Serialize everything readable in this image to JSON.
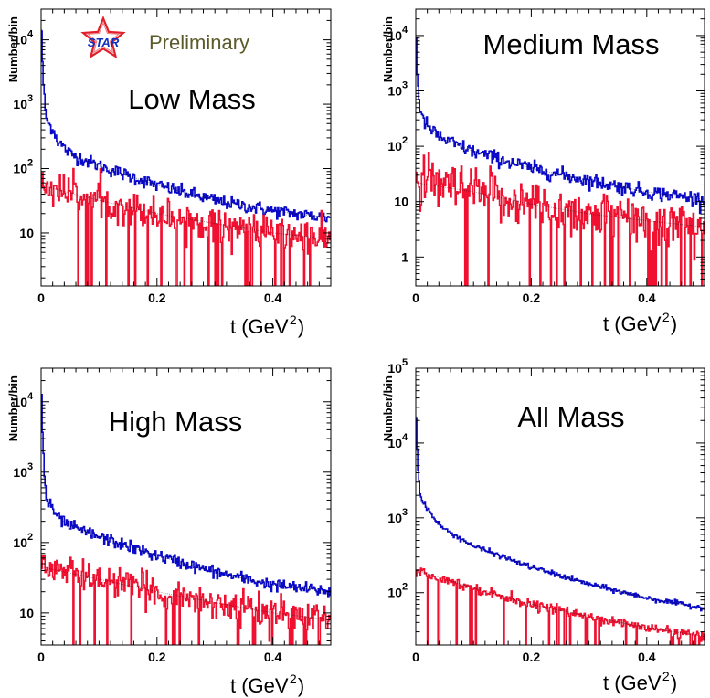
{
  "logo": {
    "text": "STAR",
    "label": "Preliminary",
    "star_color": "#e0202a",
    "label_color": "#5b5b2a"
  },
  "chart_data": [
    {
      "type": "line",
      "title": "Low Mass",
      "xlabel": "t (GeV",
      "xlabel_sup": "2",
      "xlabel_close": ")",
      "ylabel": "Number/bin",
      "xlim": [
        0,
        0.5
      ],
      "ylim": [
        1.5,
        30000
      ],
      "yscale": "log",
      "x_ticks": [
        {
          "v": 0,
          "label": "0"
        },
        {
          "v": 0.2,
          "label": "0.2"
        },
        {
          "v": 0.4,
          "label": "0.4"
        }
      ],
      "y_ticks": [
        {
          "v": 10,
          "base": "10",
          "exp": ""
        },
        {
          "v": 100,
          "base": "10",
          "exp": "2"
        },
        {
          "v": 1000,
          "base": "10",
          "exp": "3"
        },
        {
          "v": 10000,
          "base": "10",
          "exp": "4"
        }
      ],
      "series": [
        {
          "name": "blue",
          "color": "#0a0ac8",
          "noise": 0.12,
          "x": [
            0,
            0.002,
            0.005,
            0.008,
            0.012,
            0.02,
            0.03,
            0.05,
            0.1,
            0.2,
            0.3,
            0.4,
            0.5
          ],
          "values": [
            30000,
            5000,
            1500,
            700,
            500,
            420,
            260,
            170,
            110,
            55,
            32,
            22,
            17
          ]
        },
        {
          "name": "red",
          "color": "#f01030",
          "noise": 0.3,
          "x": [
            0,
            0.1,
            0.2,
            0.3,
            0.4,
            0.5
          ],
          "values": [
            55,
            32,
            20,
            14,
            10,
            8
          ]
        }
      ]
    },
    {
      "type": "line",
      "title": "Medium Mass",
      "xlabel": "t (GeV",
      "xlabel_sup": "2",
      "xlabel_close": ")",
      "ylabel": "Number/bin",
      "xlim": [
        0,
        0.5
      ],
      "ylim": [
        0.3,
        30000
      ],
      "yscale": "log",
      "x_ticks": [
        {
          "v": 0,
          "label": "0"
        },
        {
          "v": 0.2,
          "label": "0.2"
        },
        {
          "v": 0.4,
          "label": "0.4"
        }
      ],
      "y_ticks": [
        {
          "v": 1,
          "base": "1",
          "exp": ""
        },
        {
          "v": 10,
          "base": "10",
          "exp": ""
        },
        {
          "v": 100,
          "base": "10",
          "exp": "2"
        },
        {
          "v": 1000,
          "base": "10",
          "exp": "3"
        },
        {
          "v": 10000,
          "base": "10",
          "exp": "4"
        }
      ],
      "series": [
        {
          "name": "blue",
          "color": "#0a0ac8",
          "noise": 0.15,
          "x": [
            0,
            0.002,
            0.005,
            0.008,
            0.012,
            0.02,
            0.03,
            0.05,
            0.1,
            0.2,
            0.3,
            0.4,
            0.5
          ],
          "values": [
            20000,
            3000,
            900,
            400,
            300,
            240,
            180,
            130,
            80,
            40,
            24,
            15,
            11
          ]
        },
        {
          "name": "red",
          "color": "#f01030",
          "noise": 0.5,
          "x": [
            0,
            0.1,
            0.2,
            0.3,
            0.4,
            0.5
          ],
          "values": [
            22,
            15,
            9,
            6,
            4.5,
            3.5
          ]
        }
      ]
    },
    {
      "type": "line",
      "title": "High Mass",
      "xlabel": "t (GeV",
      "xlabel_sup": "2",
      "xlabel_close": ")",
      "ylabel": "Number/bin",
      "xlim": [
        0,
        0.5
      ],
      "ylim": [
        3.5,
        30000
      ],
      "yscale": "log",
      "x_ticks": [
        {
          "v": 0,
          "label": "0"
        },
        {
          "v": 0.2,
          "label": "0.2"
        },
        {
          "v": 0.4,
          "label": "0.4"
        }
      ],
      "y_ticks": [
        {
          "v": 10,
          "base": "10",
          "exp": ""
        },
        {
          "v": 100,
          "base": "10",
          "exp": "2"
        },
        {
          "v": 1000,
          "base": "10",
          "exp": "3"
        },
        {
          "v": 10000,
          "base": "10",
          "exp": "4"
        }
      ],
      "series": [
        {
          "name": "blue",
          "color": "#0a0ac8",
          "noise": 0.1,
          "x": [
            0,
            0.002,
            0.005,
            0.008,
            0.012,
            0.02,
            0.03,
            0.05,
            0.1,
            0.2,
            0.3,
            0.4,
            0.5
          ],
          "values": [
            25000,
            5000,
            1200,
            500,
            350,
            300,
            220,
            170,
            120,
            65,
            38,
            25,
            20
          ]
        },
        {
          "name": "red",
          "color": "#f01030",
          "noise": 0.25,
          "x": [
            0,
            0.1,
            0.2,
            0.3,
            0.4,
            0.5
          ],
          "values": [
            45,
            30,
            20,
            14,
            10,
            8
          ]
        }
      ]
    },
    {
      "type": "line",
      "title": "All Mass",
      "xlabel": "t (GeV",
      "xlabel_sup": "2",
      "xlabel_close": ")",
      "ylabel": "Number/bin",
      "xlim": [
        0,
        0.5
      ],
      "ylim": [
        20,
        100000
      ],
      "yscale": "log",
      "x_ticks": [
        {
          "v": 0,
          "label": "0"
        },
        {
          "v": 0.2,
          "label": "0.2"
        },
        {
          "v": 0.4,
          "label": "0.4"
        }
      ],
      "y_ticks": [
        {
          "v": 100,
          "base": "10",
          "exp": "2"
        },
        {
          "v": 1000,
          "base": "10",
          "exp": "3"
        },
        {
          "v": 10000,
          "base": "10",
          "exp": "4"
        },
        {
          "v": 100000,
          "base": "10",
          "exp": "5"
        }
      ],
      "series": [
        {
          "name": "blue",
          "color": "#0a0ac8",
          "noise": 0.04,
          "x": [
            0,
            0.002,
            0.005,
            0.008,
            0.012,
            0.02,
            0.03,
            0.05,
            0.1,
            0.2,
            0.3,
            0.4,
            0.5
          ],
          "values": [
            40000,
            10000,
            3500,
            2000,
            1600,
            1400,
            1000,
            700,
            420,
            220,
            130,
            85,
            62
          ]
        },
        {
          "name": "red",
          "color": "#f01030",
          "noise": 0.07,
          "x": [
            0,
            0.1,
            0.2,
            0.3,
            0.4,
            0.5
          ],
          "values": [
            200,
            115,
            70,
            48,
            34,
            26
          ]
        }
      ]
    }
  ]
}
